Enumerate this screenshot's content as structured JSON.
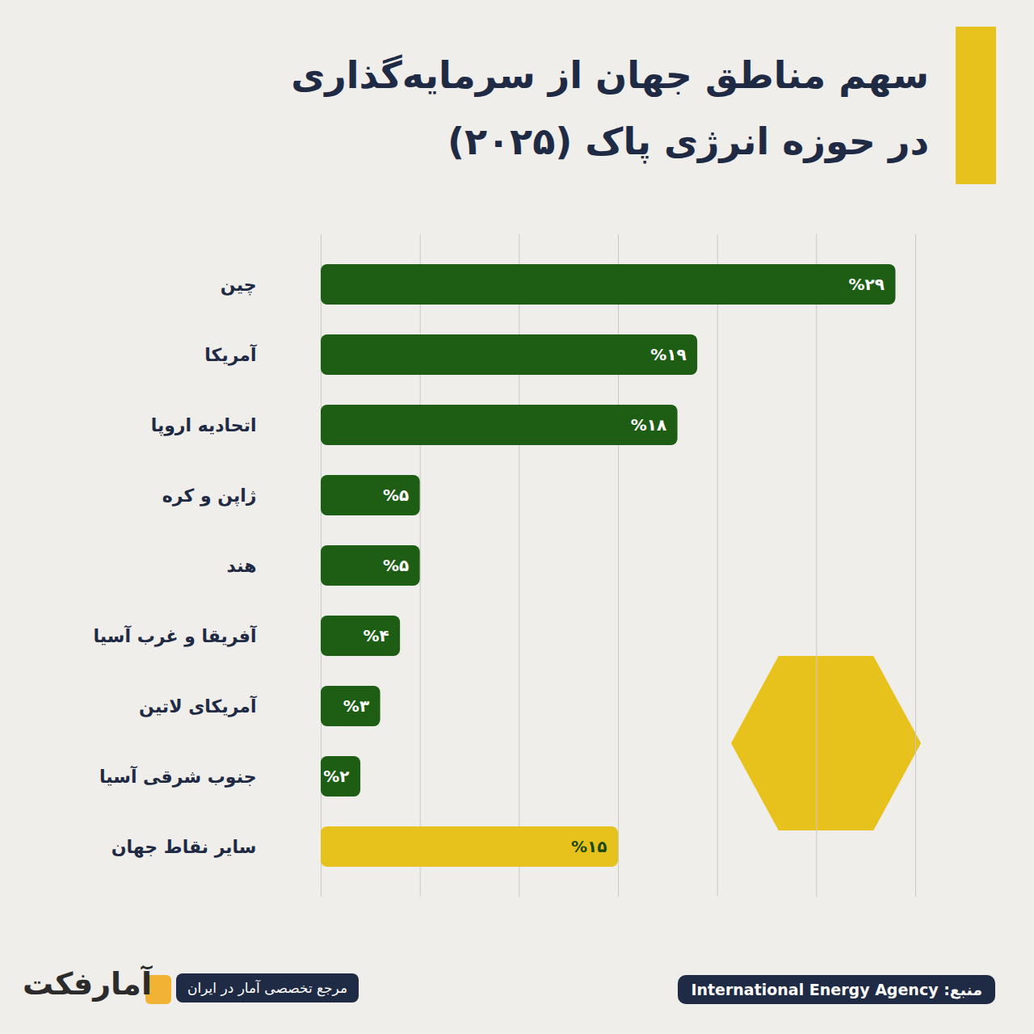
{
  "chart_data": {
    "type": "bar",
    "orientation": "horizontal",
    "title": "سهم مناطق جهان از سرمایه‌گذاری\nدر حوزه انرژی پاک (۲۰۲۵)",
    "categories": [
      "چین",
      "آمریکا",
      "اتحادیه اروپا",
      "ژاپن و کره",
      "هند",
      "آفریقا و غرب آسیا",
      "آمریکای لاتین",
      "جنوب شرقی آسیا",
      "سایر نقاط جهان"
    ],
    "values": [
      29,
      19,
      18,
      5,
      5,
      4,
      3,
      2,
      15
    ],
    "value_labels": [
      "%۲۹",
      "%۱۹",
      "%۱۸",
      "%۵",
      "%۵",
      "%۴",
      "%۳",
      "%۲",
      "%۱۵"
    ],
    "colors": [
      "#1d5e14",
      "#1d5e14",
      "#1d5e14",
      "#1d5e14",
      "#1d5e14",
      "#1d5e14",
      "#1d5e14",
      "#1d5e14",
      "#e8c21c"
    ],
    "xlim": [
      0,
      30
    ],
    "xticks": [
      0,
      5,
      10,
      15,
      20,
      25,
      30
    ],
    "grid": true,
    "data_labels": true,
    "tick_labels": "y",
    "annotations": [
      "منبع: International Energy Agency",
      "مرجع تخصصی آمار در ایران",
      "آمارفکت"
    ]
  }
}
